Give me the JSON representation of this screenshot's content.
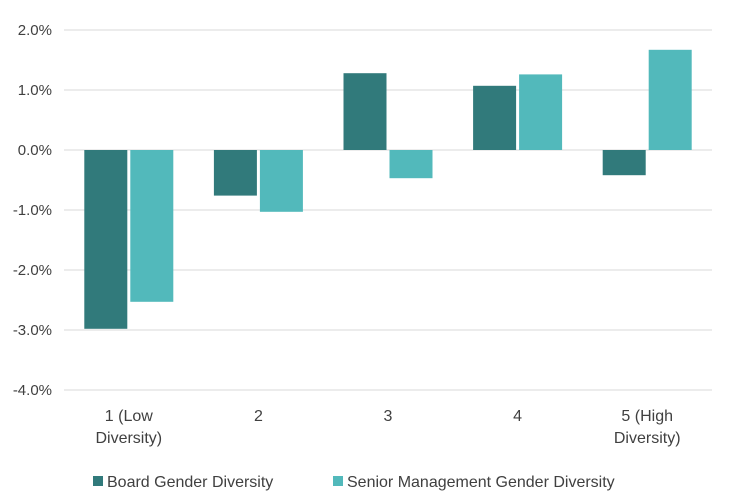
{
  "chart_data": {
    "type": "bar",
    "categories": [
      [
        "1 (Low",
        "Diversity)"
      ],
      [
        "2"
      ],
      [
        "3"
      ],
      [
        "4"
      ],
      [
        "5 (High",
        "Diversity)"
      ]
    ],
    "series": [
      {
        "name": "Board Gender Diversity",
        "color": "#317a7b",
        "values": [
          -0.0298,
          -0.0076,
          0.0128,
          0.0107,
          -0.0042
        ]
      },
      {
        "name": "Senior Management Gender Diversity",
        "color": "#52b9bb",
        "values": [
          -0.0253,
          -0.0103,
          -0.0047,
          0.0126,
          0.0167
        ]
      }
    ],
    "ylim": [
      -0.04,
      0.02
    ],
    "yticks": [
      0.02,
      0.01,
      0.0,
      -0.01,
      -0.02,
      -0.03,
      -0.04
    ],
    "ytick_labels": [
      "2.0%",
      "1.0%",
      "0.0%",
      "-1.0%",
      "-2.0%",
      "-3.0%",
      "-4.0%"
    ],
    "grid": true,
    "legend_position": "bottom",
    "gridline_color": "#d9d9d9"
  }
}
